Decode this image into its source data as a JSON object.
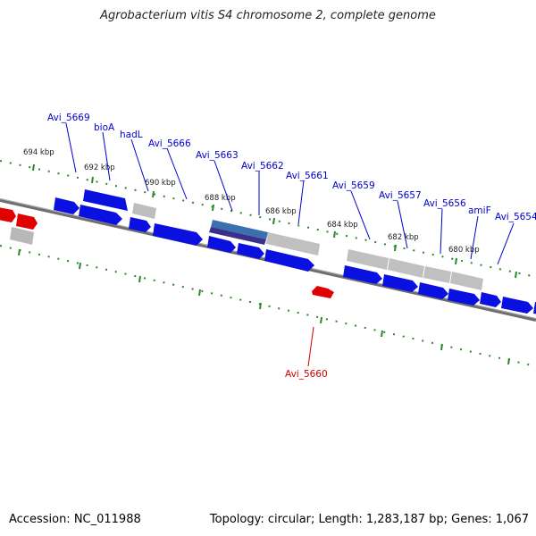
{
  "header": {
    "title": "Agrobacterium vitis S4 chromosome 2, complete genome"
  },
  "footer": {
    "accession": "Accession: NC_011988",
    "topology": "Topology: circular; Length: 1,283,187 bp; Genes: 1,067"
  },
  "colors": {
    "forward_gene": "#0a10e0",
    "other_gene": "#bdbdbd",
    "red_gene": "#e00000",
    "highlight_gene": "#3a6fb0",
    "backbone": "#7a7a7a",
    "tick": "#2a8a2a",
    "label_blue": "#0000cc",
    "label_red": "#cc0000"
  },
  "scale_labels": [
    "694 kbp",
    "692 kbp",
    "690 kbp",
    "688 kbp",
    "686 kbp",
    "684 kbp",
    "682 kbp",
    "680 kbp"
  ],
  "gene_labels": [
    {
      "name": "Avi_5669",
      "color": "blue"
    },
    {
      "name": "bioA",
      "color": "blue"
    },
    {
      "name": "hadL",
      "color": "blue"
    },
    {
      "name": "Avi_5666",
      "color": "blue"
    },
    {
      "name": "Avi_5663",
      "color": "blue"
    },
    {
      "name": "Avi_5662",
      "color": "blue"
    },
    {
      "name": "Avi_5661",
      "color": "blue"
    },
    {
      "name": "Avi_5659",
      "color": "blue"
    },
    {
      "name": "Avi_5657",
      "color": "blue"
    },
    {
      "name": "Avi_5656",
      "color": "blue"
    },
    {
      "name": "amiF",
      "color": "blue"
    },
    {
      "name": "Avi_5654",
      "color": "blue"
    },
    {
      "name": "Avi_5660",
      "color": "red"
    }
  ]
}
